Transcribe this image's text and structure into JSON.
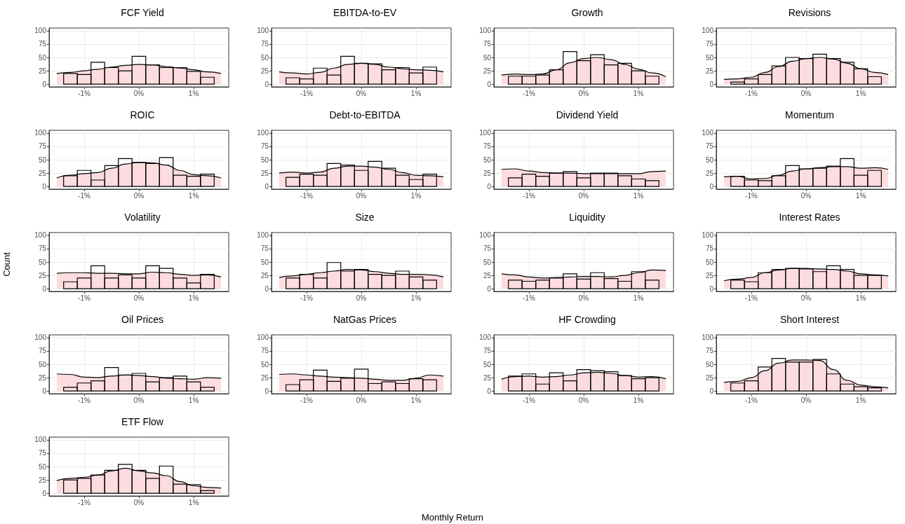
{
  "chart_data": [
    {
      "type": "histogram",
      "title": "FCF Yield",
      "bins": [
        -1.375,
        -1.125,
        -0.875,
        -0.625,
        -0.375,
        -0.125,
        0.125,
        0.375,
        0.625,
        0.875,
        1.125,
        1.375
      ],
      "xlim": [
        -1.64,
        1.64
      ],
      "xticks": [
        {
          "value": -1,
          "label": "-1%"
        },
        {
          "value": 0,
          "label": "0%"
        },
        {
          "value": 1,
          "label": "1%"
        }
      ],
      "ylim": [
        -5,
        105
      ],
      "yticks": [
        0,
        25,
        50,
        75,
        100
      ],
      "grid": true,
      "series": [
        {
          "type": "area",
          "color": "#fddcdf",
          "x": [
            -1.5,
            -1.25,
            -1,
            -0.75,
            -0.5,
            -0.25,
            0,
            0.25,
            0.5,
            0.75,
            1,
            1.25,
            1.5
          ],
          "values": [
            20,
            22,
            25,
            28,
            32,
            35,
            37,
            36,
            33,
            30,
            27,
            23,
            20
          ]
        },
        {
          "type": "histogram",
          "color": "#000000",
          "values": [
            20,
            18,
            41,
            31,
            25,
            52,
            36,
            31,
            31,
            24,
            13
          ]
        }
      ]
    },
    {
      "type": "histogram",
      "title": "EBITDA-to-EV",
      "bins": [
        -1.375,
        -1.125,
        -0.875,
        -0.625,
        -0.375,
        -0.125,
        0.125,
        0.375,
        0.625,
        0.875,
        1.125,
        1.375
      ],
      "xlim": [
        -1.64,
        1.64
      ],
      "xticks": [
        {
          "value": -1,
          "label": "-1%"
        },
        {
          "value": 0,
          "label": "0%"
        },
        {
          "value": 1,
          "label": "1%"
        }
      ],
      "ylim": [
        -5,
        105
      ],
      "yticks": [
        0,
        25,
        50,
        75,
        100
      ],
      "grid": true,
      "series": [
        {
          "type": "area",
          "color": "#fddcdf",
          "x": [
            -1.5,
            -1.25,
            -1,
            -0.75,
            -0.5,
            -0.25,
            0,
            0.25,
            0.5,
            0.75,
            1,
            1.25,
            1.5
          ],
          "values": [
            23,
            21,
            19,
            22,
            30,
            37,
            39,
            37,
            32,
            29,
            27,
            26,
            23
          ]
        },
        {
          "type": "histogram",
          "color": "#000000",
          "values": [
            12,
            10,
            30,
            17,
            52,
            39,
            38,
            27,
            31,
            21,
            32
          ]
        }
      ]
    },
    {
      "type": "histogram",
      "title": "Growth",
      "bins": [
        -1.375,
        -1.125,
        -0.875,
        -0.625,
        -0.375,
        -0.125,
        0.125,
        0.375,
        0.625,
        0.875,
        1.125,
        1.375
      ],
      "xlim": [
        -1.64,
        1.64
      ],
      "xticks": [
        {
          "value": -1,
          "label": "-1%"
        },
        {
          "value": 0,
          "label": "0%"
        },
        {
          "value": 1,
          "label": "1%"
        }
      ],
      "ylim": [
        -5,
        105
      ],
      "yticks": [
        0,
        25,
        50,
        75,
        100
      ],
      "grid": true,
      "series": [
        {
          "type": "area",
          "color": "#fddcdf",
          "x": [
            -1.5,
            -1.25,
            -1,
            -0.75,
            -0.5,
            -0.25,
            0,
            0.25,
            0.5,
            0.75,
            1,
            1.25,
            1.5
          ],
          "values": [
            17,
            19,
            18,
            19,
            27,
            40,
            48,
            50,
            46,
            37,
            28,
            21,
            14
          ]
        },
        {
          "type": "histogram",
          "color": "#000000",
          "values": [
            15,
            15,
            17,
            27,
            61,
            44,
            55,
            36,
            39,
            25,
            15
          ]
        }
      ]
    },
    {
      "type": "histogram",
      "title": "Revisions",
      "bins": [
        -1.375,
        -1.125,
        -0.875,
        -0.625,
        -0.375,
        -0.125,
        0.125,
        0.375,
        0.625,
        0.875,
        1.125,
        1.375
      ],
      "xlim": [
        -1.64,
        1.64
      ],
      "xticks": [
        {
          "value": -1,
          "label": "-1%"
        },
        {
          "value": 0,
          "label": "0%"
        },
        {
          "value": 1,
          "label": "1%"
        }
      ],
      "ylim": [
        -5,
        105
      ],
      "yticks": [
        0,
        25,
        50,
        75,
        100
      ],
      "grid": true,
      "series": [
        {
          "type": "area",
          "color": "#fddcdf",
          "x": [
            -1.5,
            -1.25,
            -1,
            -0.75,
            -0.5,
            -0.25,
            0,
            0.25,
            0.5,
            0.75,
            1,
            1.25,
            1.5
          ],
          "values": [
            9,
            10,
            13,
            22,
            33,
            43,
            48,
            50,
            47,
            39,
            29,
            22,
            18
          ]
        },
        {
          "type": "histogram",
          "color": "#000000",
          "values": [
            4,
            10,
            18,
            34,
            50,
            48,
            56,
            48,
            41,
            29,
            14
          ]
        }
      ]
    },
    {
      "type": "histogram",
      "title": "ROIC",
      "bins": [
        -1.375,
        -1.125,
        -0.875,
        -0.625,
        -0.375,
        -0.125,
        0.125,
        0.375,
        0.625,
        0.875,
        1.125,
        1.375
      ],
      "xlim": [
        -1.64,
        1.64
      ],
      "xticks": [
        {
          "value": -1,
          "label": "-1%"
        },
        {
          "value": 0,
          "label": "0%"
        },
        {
          "value": 1,
          "label": "1%"
        }
      ],
      "ylim": [
        -5,
        105
      ],
      "yticks": [
        0,
        25,
        50,
        75,
        100
      ],
      "grid": true,
      "series": [
        {
          "type": "area",
          "color": "#fddcdf",
          "x": [
            -1.5,
            -1.25,
            -1,
            -0.75,
            -0.5,
            -0.25,
            0,
            0.25,
            0.5,
            0.75,
            1,
            1.25,
            1.5
          ],
          "values": [
            16,
            21,
            24,
            26,
            34,
            42,
            45,
            44,
            40,
            30,
            22,
            20,
            16
          ]
        },
        {
          "type": "histogram",
          "color": "#000000",
          "values": [
            20,
            30,
            12,
            39,
            52,
            45,
            43,
            54,
            21,
            19,
            23
          ]
        }
      ]
    },
    {
      "type": "histogram",
      "title": "Debt-to-EBITDA",
      "bins": [
        -1.375,
        -1.125,
        -0.875,
        -0.625,
        -0.375,
        -0.125,
        0.125,
        0.375,
        0.625,
        0.875,
        1.125,
        1.375
      ],
      "xlim": [
        -1.64,
        1.64
      ],
      "xticks": [
        {
          "value": -1,
          "label": "-1%"
        },
        {
          "value": 0,
          "label": "0%"
        },
        {
          "value": 1,
          "label": "1%"
        }
      ],
      "ylim": [
        -5,
        105
      ],
      "yticks": [
        0,
        25,
        50,
        75,
        100
      ],
      "grid": true,
      "series": [
        {
          "type": "area",
          "color": "#fddcdf",
          "x": [
            -1.5,
            -1.25,
            -1,
            -0.75,
            -0.5,
            -0.25,
            0,
            0.25,
            0.5,
            0.75,
            1,
            1.25,
            1.5
          ],
          "values": [
            25,
            27,
            25,
            27,
            34,
            38,
            38,
            36,
            32,
            26,
            21,
            20,
            18
          ]
        },
        {
          "type": "histogram",
          "color": "#000000",
          "values": [
            17,
            23,
            21,
            43,
            40,
            30,
            47,
            34,
            21,
            13,
            23
          ]
        }
      ]
    },
    {
      "type": "histogram",
      "title": "Dividend Yield",
      "bins": [
        -1.375,
        -1.125,
        -0.875,
        -0.625,
        -0.375,
        -0.125,
        0.125,
        0.375,
        0.625,
        0.875,
        1.125,
        1.375
      ],
      "xlim": [
        -1.64,
        1.64
      ],
      "xticks": [
        {
          "value": -1,
          "label": "-1%"
        },
        {
          "value": 0,
          "label": "0%"
        },
        {
          "value": 1,
          "label": "1%"
        }
      ],
      "ylim": [
        -5,
        105
      ],
      "yticks": [
        0,
        25,
        50,
        75,
        100
      ],
      "grid": true,
      "series": [
        {
          "type": "area",
          "color": "#fddcdf",
          "x": [
            -1.5,
            -1.25,
            -1,
            -0.75,
            -0.5,
            -0.25,
            0,
            0.25,
            0.5,
            0.75,
            1,
            1.25,
            1.5
          ],
          "values": [
            32,
            33,
            29,
            26,
            25,
            25,
            24,
            24,
            24,
            24,
            24,
            28,
            29
          ]
        },
        {
          "type": "histogram",
          "color": "#000000",
          "values": [
            16,
            23,
            19,
            25,
            28,
            16,
            25,
            25,
            20,
            14,
            11
          ]
        }
      ]
    },
    {
      "type": "histogram",
      "title": "Momentum",
      "bins": [
        -1.375,
        -1.125,
        -0.875,
        -0.625,
        -0.375,
        -0.125,
        0.125,
        0.375,
        0.625,
        0.875,
        1.125,
        1.375
      ],
      "xlim": [
        -1.64,
        1.64
      ],
      "xticks": [
        {
          "value": -1,
          "label": "-1%"
        },
        {
          "value": 0,
          "label": "0%"
        },
        {
          "value": 1,
          "label": "1%"
        }
      ],
      "ylim": [
        -5,
        105
      ],
      "yticks": [
        0,
        25,
        50,
        75,
        100
      ],
      "grid": true,
      "series": [
        {
          "type": "area",
          "color": "#fddcdf",
          "x": [
            -1.5,
            -1.25,
            -1,
            -0.75,
            -0.5,
            -0.25,
            0,
            0.25,
            0.5,
            0.75,
            1,
            1.25,
            1.5
          ],
          "values": [
            18,
            19,
            14,
            15,
            21,
            29,
            33,
            35,
            37,
            37,
            34,
            35,
            32
          ]
        },
        {
          "type": "histogram",
          "color": "#000000",
          "values": [
            19,
            12,
            11,
            20,
            39,
            33,
            34,
            38,
            52,
            21,
            30
          ]
        }
      ]
    },
    {
      "type": "histogram",
      "title": "Volatility",
      "ylabel": "Count",
      "bins": [
        -1.375,
        -1.125,
        -0.875,
        -0.625,
        -0.375,
        -0.125,
        0.125,
        0.375,
        0.625,
        0.875,
        1.125,
        1.375
      ],
      "xlim": [
        -1.64,
        1.64
      ],
      "xticks": [
        {
          "value": -1,
          "label": "-1%"
        },
        {
          "value": 0,
          "label": "0%"
        },
        {
          "value": 1,
          "label": "1%"
        }
      ],
      "ylim": [
        -5,
        105
      ],
      "yticks": [
        0,
        25,
        50,
        75,
        100
      ],
      "grid": true,
      "series": [
        {
          "type": "area",
          "color": "#fddcdf",
          "x": [
            -1.5,
            -1.25,
            -1,
            -0.75,
            -0.5,
            -0.25,
            0,
            0.25,
            0.5,
            0.75,
            1,
            1.25,
            1.5
          ],
          "values": [
            29,
            30,
            30,
            29,
            29,
            28,
            28,
            31,
            30,
            27,
            25,
            26,
            22
          ]
        },
        {
          "type": "histogram",
          "color": "#000000",
          "values": [
            13,
            20,
            43,
            20,
            26,
            20,
            43,
            38,
            20,
            11,
            27
          ]
        }
      ]
    },
    {
      "type": "histogram",
      "title": "Size",
      "bins": [
        -1.375,
        -1.125,
        -0.875,
        -0.625,
        -0.375,
        -0.125,
        0.125,
        0.375,
        0.625,
        0.875,
        1.125,
        1.375
      ],
      "xlim": [
        -1.64,
        1.64
      ],
      "xticks": [
        {
          "value": -1,
          "label": "-1%"
        },
        {
          "value": 0,
          "label": "0%"
        },
        {
          "value": 1,
          "label": "1%"
        }
      ],
      "ylim": [
        -5,
        105
      ],
      "yticks": [
        0,
        25,
        50,
        75,
        100
      ],
      "grid": true,
      "series": [
        {
          "type": "area",
          "color": "#fddcdf",
          "x": [
            -1.5,
            -1.25,
            -1,
            -0.75,
            -0.5,
            -0.25,
            0,
            0.25,
            0.5,
            0.75,
            1,
            1.25,
            1.5
          ],
          "values": [
            21,
            24,
            27,
            30,
            33,
            36,
            35,
            32,
            29,
            27,
            27,
            26,
            22
          ]
        },
        {
          "type": "histogram",
          "color": "#000000",
          "values": [
            20,
            27,
            20,
            49,
            33,
            36,
            27,
            25,
            33,
            22,
            16
          ]
        }
      ]
    },
    {
      "type": "histogram",
      "title": "Liquidity",
      "bins": [
        -1.375,
        -1.125,
        -0.875,
        -0.625,
        -0.375,
        -0.125,
        0.125,
        0.375,
        0.625,
        0.875,
        1.125,
        1.375
      ],
      "xlim": [
        -1.64,
        1.64
      ],
      "xticks": [
        {
          "value": -1,
          "label": "-1%"
        },
        {
          "value": 0,
          "label": "0%"
        },
        {
          "value": 1,
          "label": "1%"
        }
      ],
      "ylim": [
        -5,
        105
      ],
      "yticks": [
        0,
        25,
        50,
        75,
        100
      ],
      "grid": true,
      "series": [
        {
          "type": "area",
          "color": "#fddcdf",
          "x": [
            -1.5,
            -1.25,
            -1,
            -0.75,
            -0.5,
            -0.25,
            0,
            0.25,
            0.5,
            0.75,
            1,
            1.25,
            1.5
          ],
          "values": [
            28,
            26,
            22,
            20,
            21,
            22,
            23,
            23,
            22,
            25,
            30,
            35,
            34
          ]
        },
        {
          "type": "histogram",
          "color": "#000000",
          "values": [
            16,
            14,
            16,
            20,
            28,
            18,
            30,
            19,
            14,
            32,
            16
          ]
        }
      ]
    },
    {
      "type": "histogram",
      "title": "Interest Rates",
      "bins": [
        -1.375,
        -1.125,
        -0.875,
        -0.625,
        -0.375,
        -0.125,
        0.125,
        0.375,
        0.625,
        0.875,
        1.125,
        1.375
      ],
      "xlim": [
        -1.64,
        1.64
      ],
      "xticks": [
        {
          "value": -1,
          "label": "-1%"
        },
        {
          "value": 0,
          "label": "0%"
        },
        {
          "value": 1,
          "label": "1%"
        }
      ],
      "ylim": [
        -5,
        105
      ],
      "yticks": [
        0,
        25,
        50,
        75,
        100
      ],
      "grid": true,
      "series": [
        {
          "type": "area",
          "color": "#fddcdf",
          "x": [
            -1.5,
            -1.25,
            -1,
            -0.75,
            -0.5,
            -0.25,
            0,
            0.25,
            0.5,
            0.75,
            1,
            1.25,
            1.5
          ],
          "values": [
            15,
            18,
            21,
            30,
            35,
            38,
            38,
            37,
            36,
            33,
            28,
            26,
            24
          ]
        },
        {
          "type": "histogram",
          "color": "#000000",
          "values": [
            16,
            13,
            30,
            36,
            38,
            37,
            32,
            43,
            36,
            25,
            25
          ]
        }
      ]
    },
    {
      "type": "histogram",
      "title": "Oil Prices",
      "bins": [
        -1.375,
        -1.125,
        -0.875,
        -0.625,
        -0.375,
        -0.125,
        0.125,
        0.375,
        0.625,
        0.875,
        1.125,
        1.375
      ],
      "xlim": [
        -1.64,
        1.64
      ],
      "xticks": [
        {
          "value": -1,
          "label": "-1%"
        },
        {
          "value": 0,
          "label": "0%"
        },
        {
          "value": 1,
          "label": "1%"
        }
      ],
      "ylim": [
        -5,
        105
      ],
      "yticks": [
        0,
        25,
        50,
        75,
        100
      ],
      "grid": true,
      "series": [
        {
          "type": "area",
          "color": "#fddcdf",
          "x": [
            -1.5,
            -1.25,
            -1,
            -0.75,
            -0.5,
            -0.25,
            0,
            0.25,
            0.5,
            0.75,
            1,
            1.25,
            1.5
          ],
          "values": [
            32,
            31,
            26,
            25,
            28,
            30,
            29,
            27,
            24,
            23,
            22,
            25,
            24
          ]
        },
        {
          "type": "histogram",
          "color": "#000000",
          "values": [
            7,
            15,
            19,
            44,
            30,
            33,
            17,
            25,
            28,
            17,
            7
          ]
        }
      ]
    },
    {
      "type": "histogram",
      "title": "NatGas Prices",
      "bins": [
        -1.375,
        -1.125,
        -0.875,
        -0.625,
        -0.375,
        -0.125,
        0.125,
        0.375,
        0.625,
        0.875,
        1.125,
        1.375
      ],
      "xlim": [
        -1.64,
        1.64
      ],
      "xticks": [
        {
          "value": -1,
          "label": "-1%"
        },
        {
          "value": 0,
          "label": "0%"
        },
        {
          "value": 1,
          "label": "1%"
        }
      ],
      "ylim": [
        -5,
        105
      ],
      "yticks": [
        0,
        25,
        50,
        75,
        100
      ],
      "grid": true,
      "series": [
        {
          "type": "area",
          "color": "#fddcdf",
          "x": [
            -1.5,
            -1.25,
            -1,
            -0.75,
            -0.5,
            -0.25,
            0,
            0.25,
            0.5,
            0.75,
            1,
            1.25,
            1.5
          ],
          "values": [
            31,
            32,
            30,
            28,
            26,
            25,
            24,
            22,
            20,
            20,
            24,
            30,
            28
          ]
        },
        {
          "type": "histogram",
          "color": "#000000",
          "values": [
            12,
            21,
            39,
            18,
            24,
            41,
            14,
            17,
            14,
            23,
            21
          ]
        }
      ]
    },
    {
      "type": "histogram",
      "title": "HF Crowding",
      "bins": [
        -1.375,
        -1.125,
        -0.875,
        -0.625,
        -0.375,
        -0.125,
        0.125,
        0.375,
        0.625,
        0.875,
        1.125,
        1.375
      ],
      "xlim": [
        -1.64,
        1.64
      ],
      "xticks": [
        {
          "value": -1,
          "label": "-1%"
        },
        {
          "value": 0,
          "label": "0%"
        },
        {
          "value": 1,
          "label": "1%"
        }
      ],
      "ylim": [
        -5,
        105
      ],
      "yticks": [
        0,
        25,
        50,
        75,
        100
      ],
      "grid": true,
      "series": [
        {
          "type": "area",
          "color": "#fddcdf",
          "x": [
            -1.5,
            -1.25,
            -1,
            -0.75,
            -0.5,
            -0.25,
            0,
            0.25,
            0.5,
            0.75,
            1,
            1.25,
            1.5
          ],
          "values": [
            22,
            27,
            28,
            26,
            27,
            30,
            34,
            35,
            33,
            29,
            26,
            27,
            23
          ]
        },
        {
          "type": "histogram",
          "color": "#000000",
          "values": [
            28,
            32,
            13,
            34,
            19,
            40,
            38,
            36,
            29,
            23,
            25
          ]
        }
      ]
    },
    {
      "type": "histogram",
      "title": "Short Interest",
      "bins": [
        -1.375,
        -1.125,
        -0.875,
        -0.625,
        -0.375,
        -0.125,
        0.125,
        0.375,
        0.625,
        0.875,
        1.125,
        1.375
      ],
      "xlim": [
        -1.64,
        1.64
      ],
      "xticks": [
        {
          "value": -1,
          "label": "-1%"
        },
        {
          "value": 0,
          "label": "0%"
        },
        {
          "value": 1,
          "label": "1%"
        }
      ],
      "ylim": [
        -5,
        105
      ],
      "yticks": [
        0,
        25,
        50,
        75,
        100
      ],
      "grid": true,
      "series": [
        {
          "type": "area",
          "color": "#fddcdf",
          "x": [
            -1.5,
            -1.25,
            -1,
            -0.75,
            -0.5,
            -0.25,
            0,
            0.25,
            0.5,
            0.75,
            1,
            1.25,
            1.5
          ],
          "values": [
            16,
            18,
            25,
            38,
            52,
            58,
            58,
            57,
            40,
            20,
            11,
            8,
            6
          ]
        },
        {
          "type": "histogram",
          "color": "#000000",
          "values": [
            15,
            19,
            45,
            61,
            54,
            54,
            59,
            32,
            13,
            8,
            6
          ]
        }
      ]
    },
    {
      "type": "histogram",
      "title": "ETF Flow",
      "annotations": [
        "Monthly Return"
      ],
      "bins": [
        -1.375,
        -1.125,
        -0.875,
        -0.625,
        -0.375,
        -0.125,
        0.125,
        0.375,
        0.625,
        0.875,
        1.125,
        1.375
      ],
      "xlim": [
        -1.64,
        1.64
      ],
      "xticks": [
        {
          "value": -1,
          "label": "-1%"
        },
        {
          "value": 0,
          "label": "0%"
        },
        {
          "value": 1,
          "label": "1%"
        }
      ],
      "ylim": [
        -5,
        105
      ],
      "yticks": [
        0,
        25,
        50,
        75,
        100
      ],
      "grid": true,
      "series": [
        {
          "type": "area",
          "color": "#fddcdf",
          "x": [
            -1.5,
            -1.25,
            -1,
            -0.75,
            -0.5,
            -0.25,
            0,
            0.25,
            0.5,
            0.75,
            1,
            1.25,
            1.5
          ],
          "values": [
            24,
            28,
            30,
            34,
            42,
            47,
            42,
            38,
            33,
            22,
            14,
            11,
            10
          ]
        },
        {
          "type": "histogram",
          "color": "#000000",
          "values": [
            25,
            28,
            34,
            43,
            54,
            43,
            28,
            51,
            17,
            16,
            5
          ]
        }
      ]
    }
  ]
}
